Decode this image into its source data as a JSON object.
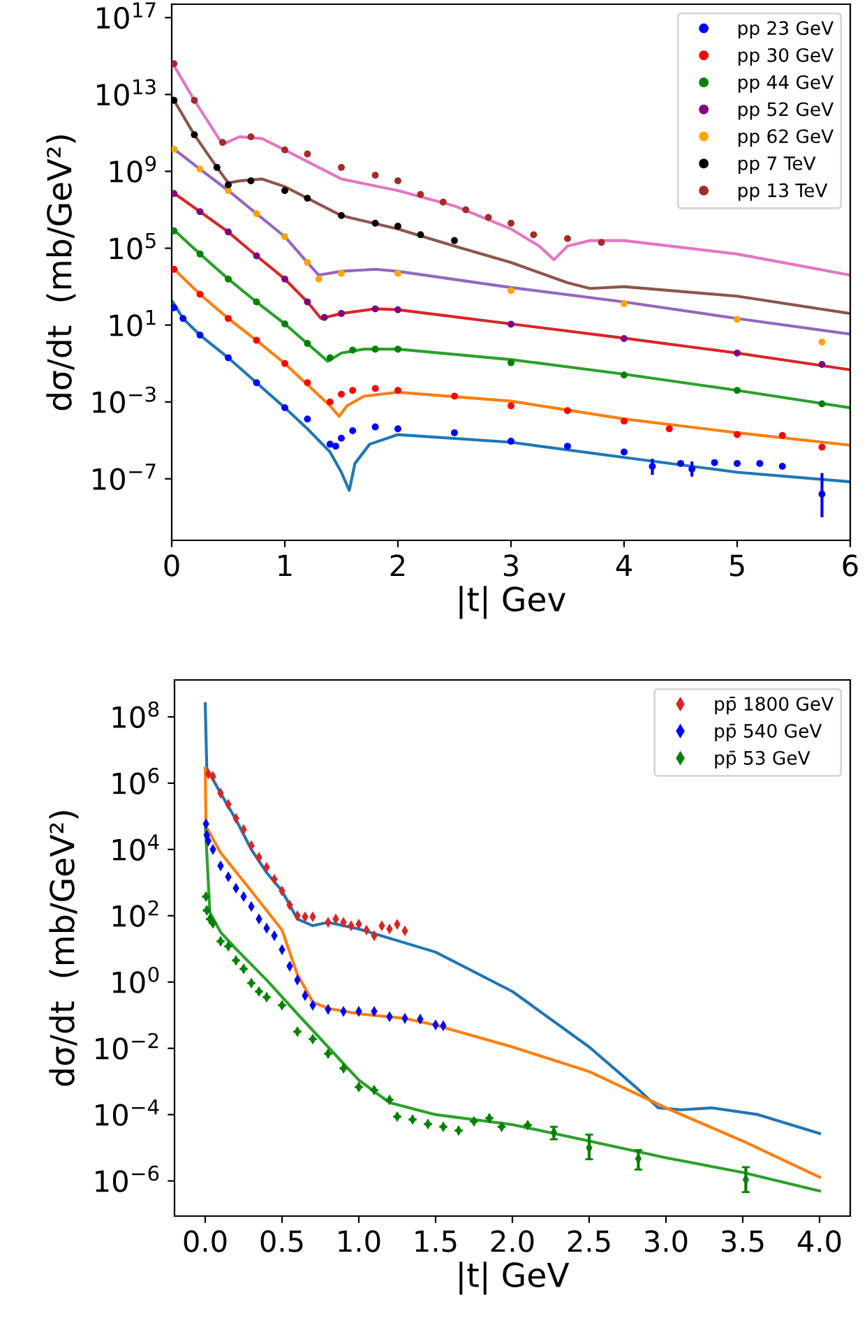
{
  "chart_data": [
    {
      "type": "scatter",
      "xlabel": "|t| Gev",
      "ylabel": "dσ/dt  (mb/GeV²)",
      "log": "y",
      "grid": false,
      "legend": "top right",
      "marker": "circle",
      "xlim": [
        0,
        6
      ],
      "xticks": [
        0,
        1,
        2,
        3,
        4,
        5,
        6
      ],
      "ylim": [
        6.3e-11,
        5e+17
      ],
      "yticks": [
        {
          "value": 1e+17,
          "label": "10$^{17}$"
        },
        {
          "value": 10000000000000.0,
          "label": "10$^{13}$"
        },
        {
          "value": 1000000000.0,
          "label": "10$^{9}$"
        },
        {
          "value": 100000.0,
          "label": "10$^{5}$"
        },
        {
          "value": 10,
          "label": "10$^{1}$"
        },
        {
          "value": 0.001,
          "label": "10$^{−3}$"
        },
        {
          "value": 1e-07,
          "label": "10$^{−7}$"
        }
      ],
      "series": [
        {
          "type": "scatter",
          "name": "pp 23 GeV",
          "color": "#0000ff",
          "x": [
            0.02,
            0.1,
            0.25,
            0.5,
            0.75,
            1.0,
            1.2,
            1.4,
            1.45,
            1.5,
            1.6,
            1.8,
            2.0,
            2.5,
            3.0,
            3.5,
            4.0,
            4.25,
            4.5,
            4.6,
            4.8,
            5.0,
            5.2,
            5.4,
            5.75
          ],
          "values": [
            80,
            22,
            3,
            0.2,
            0.01,
            0.0005,
            0.00013,
            6.3e-06,
            5e-06,
            1.3e-05,
            3.2e-05,
            5e-05,
            4e-05,
            2.5e-05,
            9e-06,
            5e-06,
            2.5e-06,
            4.5e-07,
            6.3e-07,
            3.2e-07,
            7e-07,
            6.3e-07,
            6.3e-07,
            4.5e-07,
            1.6e-08
          ],
          "errors": [
            null,
            null,
            null,
            null,
            null,
            null,
            null,
            null,
            null,
            null,
            null,
            null,
            null,
            null,
            null,
            null,
            null,
            [
              1.6e-07,
              1.1e-06
            ],
            null,
            [
              1.3e-07,
              8e-07
            ],
            null,
            null,
            null,
            null,
            [
              1e-09,
              2e-07
            ]
          ]
        },
        {
          "type": "scatter",
          "name": "pp 30 GeV",
          "color": "#ff0000",
          "x": [
            0.02,
            0.25,
            0.5,
            0.75,
            1.0,
            1.2,
            1.4,
            1.5,
            1.6,
            1.8,
            2.0,
            2.5,
            3.0,
            3.5,
            4.0,
            4.4,
            5.0,
            5.4,
            5.75
          ],
          "values": [
            8000,
            400,
            22,
            1.6,
            0.1,
            0.01,
            0.001,
            0.0025,
            0.004,
            0.005,
            0.004,
            0.002,
            0.00063,
            0.00035,
            0.0001,
            4e-05,
            2e-05,
            1.8e-05,
            4.5e-06
          ]
        },
        {
          "type": "scatter",
          "name": "pp 44 GeV",
          "color": "#008000",
          "x": [
            0.02,
            0.25,
            0.5,
            0.75,
            1.0,
            1.2,
            1.4,
            1.6,
            1.8,
            2.0,
            3.0,
            4.0,
            5.0,
            5.75
          ],
          "values": [
            800000.0,
            50000.0,
            2500,
            160,
            11.5,
            1.1,
            0.2,
            0.5,
            0.56,
            0.56,
            0.11,
            0.025,
            0.004,
            0.0008
          ]
        },
        {
          "type": "scatter",
          "name": "pp 52 GeV",
          "color": "#800080",
          "x": [
            0.02,
            0.25,
            0.5,
            0.75,
            1.0,
            1.2,
            1.35,
            1.5,
            1.8,
            2.0,
            3.0,
            4.0,
            5.0,
            5.75
          ],
          "values": [
            70000000.0,
            8000000.0,
            700000.0,
            40000.0,
            2500,
            160,
            25,
            40,
            70,
            63,
            11,
            2,
            0.35,
            0.09
          ]
        },
        {
          "type": "scatter",
          "name": "pp 62 GeV",
          "color": "#ffa500",
          "x": [
            0.02,
            0.25,
            0.5,
            0.75,
            1.0,
            1.2,
            1.3,
            1.5,
            2.0,
            3.0,
            4.0,
            5.0,
            5.75
          ],
          "values": [
            14000000000.0,
            1300000000.0,
            100000000.0,
            6300000.0,
            400000.0,
            18000.0,
            2500,
            5000,
            5000,
            630,
            130,
            20,
            1.3
          ]
        },
        {
          "type": "scatter",
          "name": "pp 7 TeV",
          "color": "#000000",
          "x": [
            0.02,
            0.2,
            0.4,
            0.5,
            0.7,
            1.0,
            1.2,
            1.5,
            1.8,
            2.0,
            2.2,
            2.5
          ],
          "values": [
            5000000000000.0,
            80000000000.0,
            1600000000.0,
            200000000.0,
            320000000.0,
            100000000.0,
            40000000.0,
            5000000.0,
            2000000.0,
            1400000.0,
            500000.0,
            250000.0
          ]
        },
        {
          "type": "scatter",
          "name": "pp 13 TeV",
          "color": "#a52a2a",
          "x": [
            0.02,
            0.2,
            0.45,
            0.7,
            1.0,
            1.2,
            1.5,
            1.8,
            2.0,
            2.2,
            2.4,
            2.6,
            2.8,
            3.0,
            3.2,
            3.5,
            3.8
          ],
          "values": [
            400000000000000.0,
            5000000000000.0,
            32000000000.0,
            63000000000.0,
            13000000000.0,
            8000000000.0,
            1600000000.0,
            630000000.0,
            320000000.0,
            63000000.0,
            25000000.0,
            10000000.0,
            4000000.0,
            2000000.0,
            500000.0,
            320000.0,
            200000.0
          ]
        },
        {
          "type": "line",
          "marker": "none",
          "color": "#1f77b4",
          "x": [
            0.01,
            0.1,
            0.25,
            0.5,
            0.75,
            1.0,
            1.2,
            1.4,
            1.5,
            1.57,
            1.62,
            1.75,
            2.0,
            3.0,
            4.0,
            5.0,
            6.0
          ],
          "values": [
            160,
            22,
            3,
            0.2,
            0.01,
            0.0005,
            4e-05,
            2.5e-06,
            2.2e-07,
            2.5e-08,
            6.3e-07,
            6.3e-06,
            2e-05,
            8e-06,
            1.3e-06,
            2.2e-07,
            7e-08
          ]
        },
        {
          "type": "line",
          "marker": "none",
          "color": "#ff7f0e",
          "x": [
            0.01,
            0.25,
            0.5,
            0.75,
            1.0,
            1.2,
            1.4,
            1.48,
            1.55,
            1.7,
            2.0,
            3.0,
            4.0,
            5.0,
            6.0
          ],
          "values": [
            9300,
            400,
            22,
            1.6,
            0.1,
            0.008,
            0.00063,
            0.00018,
            0.00063,
            0.002,
            0.0032,
            0.0011,
            0.00013,
            2.5e-05,
            5.6e-06
          ]
        },
        {
          "type": "line",
          "marker": "none",
          "color": "#2ca02c",
          "x": [
            0.01,
            0.25,
            0.5,
            0.75,
            1.0,
            1.2,
            1.38,
            1.5,
            1.7,
            2.0,
            3.0,
            4.0,
            5.0,
            6.0
          ],
          "values": [
            1000000.0,
            50000.0,
            2500,
            160,
            11.5,
            1.1,
            0.13,
            0.35,
            0.56,
            0.56,
            0.16,
            0.028,
            0.004,
            0.0005
          ]
        },
        {
          "type": "line",
          "marker": "none",
          "color": "#d62728",
          "x": [
            0.01,
            0.25,
            0.5,
            0.75,
            1.0,
            1.2,
            1.32,
            1.5,
            1.8,
            2.0,
            3.0,
            4.0,
            5.0,
            6.0
          ],
          "values": [
            80000000.0,
            8000000.0,
            700000.0,
            40000.0,
            2500,
            160,
            22,
            40,
            70,
            63,
            11.5,
            2.1,
            0.35,
            0.047
          ]
        },
        {
          "type": "line",
          "marker": "none",
          "color": "#9467bd",
          "x": [
            0.01,
            0.25,
            0.5,
            0.75,
            1.0,
            1.2,
            1.3,
            1.5,
            1.8,
            2.0,
            3.0,
            4.0,
            5.0,
            6.0
          ],
          "values": [
            16000000000.0,
            1300000000.0,
            100000000.0,
            6300000.0,
            400000.0,
            18000.0,
            4000,
            6300,
            8000,
            6300,
            900,
            160,
            22,
            3.4
          ]
        },
        {
          "type": "line",
          "marker": "none",
          "color": "#8c564b",
          "x": [
            0.01,
            0.2,
            0.4,
            0.5,
            0.6,
            0.8,
            1.0,
            1.5,
            2.0,
            2.5,
            3.0,
            3.5,
            3.7,
            4.0,
            5.0,
            6.0
          ],
          "values": [
            6300000000000.0,
            80000000000.0,
            1600000000.0,
            250000000.0,
            320000000.0,
            400000000.0,
            160000000.0,
            5000000.0,
            1000000.0,
            130000.0,
            18000.0,
            1600,
            800,
            1000,
            320,
            40
          ]
        },
        {
          "type": "line",
          "marker": "none",
          "color": "#e377c2",
          "x": [
            0.01,
            0.2,
            0.45,
            0.6,
            0.8,
            1.0,
            1.5,
            2.0,
            2.5,
            3.0,
            3.25,
            3.38,
            3.5,
            3.7,
            4.0,
            5.0,
            6.0
          ],
          "values": [
            400000000000000.0,
            5000000000000.0,
            25000000000.0,
            63000000000.0,
            50000000000.0,
            13000000000.0,
            400000000.0,
            100000000.0,
            16000000.0,
            1000000.0,
            130000.0,
            25000.0,
            130000.0,
            250000.0,
            250000.0,
            50000.0,
            4000
          ]
        }
      ]
    },
    {
      "type": "scatter",
      "xlabel": "|t| GeV",
      "ylabel": "dσ/dt  (mb/GeV²)",
      "log": "y",
      "grid": false,
      "legend": "top right",
      "marker": "diamond",
      "xlim": [
        -0.2,
        4.2
      ],
      "xticks": [
        {
          "value": 0,
          "label": "0.0"
        },
        0.5,
        {
          "value": 1,
          "label": "1.0"
        },
        1.5,
        {
          "value": 2,
          "label": "2.0"
        },
        2.5,
        {
          "value": 3,
          "label": "3.0"
        },
        3.5,
        {
          "value": 4,
          "label": "4.0"
        }
      ],
      "ylim": [
        8.7e-08,
        1300000000.0
      ],
      "yticks": [
        {
          "value": 100000000.0,
          "label": "10$^{8}$"
        },
        {
          "value": 1000000.0,
          "label": "10$^{6}$"
        },
        {
          "value": 10000.0,
          "label": "10$^{4}$"
        },
        {
          "value": 100,
          "label": "10$^{2}$"
        },
        {
          "value": 1,
          "label": "10$^{0}$"
        },
        {
          "value": 0.01,
          "label": "10$^{−2}$"
        },
        {
          "value": 0.0001,
          "label": "10$^{−4}$"
        },
        {
          "value": 1e-06,
          "label": "10$^{−6}$"
        }
      ],
      "series": [
        {
          "type": "scatter",
          "name": "pp̄ 1800 GeV",
          "color": "#d62728",
          "x": [
            0.02,
            0.05,
            0.1,
            0.15,
            0.2,
            0.25,
            0.3,
            0.35,
            0.4,
            0.45,
            0.5,
            0.55,
            0.6,
            0.65,
            0.7,
            0.8,
            0.85,
            0.9,
            0.95,
            1.0,
            1.05,
            1.1,
            1.15,
            1.2,
            1.25,
            1.3
          ],
          "values": [
            1900000.0,
            1600000.0,
            500000.0,
            230000.0,
            87000.0,
            40000.0,
            13000.0,
            5800,
            2900,
            1260,
            560,
            210,
            100,
            93,
            93,
            63,
            80,
            63,
            50,
            56,
            37,
            25,
            50,
            40,
            55,
            35
          ]
        },
        {
          "type": "scatter",
          "name": "pp̄ 540 GeV",
          "color": "#0000ff",
          "x": [
            0.005,
            0.01,
            0.02,
            0.05,
            0.1,
            0.15,
            0.2,
            0.25,
            0.3,
            0.35,
            0.4,
            0.45,
            0.5,
            0.55,
            0.6,
            0.65,
            0.7,
            0.8,
            0.9,
            1.0,
            1.1,
            1.2,
            1.3,
            1.4,
            1.5,
            1.55
          ],
          "values": [
            59000.0,
            27000.0,
            18000.0,
            10000.0,
            3200,
            1500,
            680,
            380,
            190,
            80,
            42,
            25,
            9.5,
            3,
            1.15,
            0.39,
            0.2,
            0.15,
            0.13,
            0.13,
            0.13,
            0.09,
            0.08,
            0.076,
            0.051,
            0.048
          ]
        },
        {
          "type": "scatter",
          "name": "pp̄ 53 GeV",
          "color": "#008000",
          "x": [
            0.005,
            0.01,
            0.03,
            0.05,
            0.1,
            0.15,
            0.2,
            0.25,
            0.3,
            0.35,
            0.4,
            0.5,
            0.6,
            0.7,
            0.8,
            0.9,
            1.0,
            1.1,
            1.2,
            1.25,
            1.35,
            1.45,
            1.55,
            1.65,
            1.75,
            1.85,
            1.93,
            2.1,
            2.27,
            2.5,
            2.82,
            3.52
          ],
          "values": [
            380,
            145,
            80,
            59,
            17,
            12,
            4.5,
            2.5,
            0.93,
            0.52,
            0.35,
            0.2,
            0.032,
            0.019,
            0.0069,
            0.0025,
            0.00068,
            0.00055,
            0.00028,
            8.7e-05,
            7.1e-05,
            5.2e-05,
            4.3e-05,
            3.3e-05,
            6.3e-05,
            7.8e-05,
            4.3e-05,
            4.8e-05,
            2.9e-05,
            1e-05,
            4.7e-06,
            1.1e-06
          ],
          "errors": [
            null,
            null,
            null,
            null,
            null,
            null,
            null,
            null,
            null,
            null,
            null,
            null,
            null,
            null,
            null,
            null,
            null,
            null,
            null,
            null,
            null,
            null,
            null,
            null,
            null,
            null,
            null,
            null,
            [
              1.8e-05,
              4.3e-05
            ],
            [
              4.5e-06,
              2.5e-05
            ],
            [
              2.2e-06,
              8.5e-06
            ],
            [
              4.6e-07,
              2.6e-06
            ]
          ]
        },
        {
          "type": "line",
          "marker": "none",
          "color": "#1f77b4",
          "x": [
            0.0,
            0.01,
            0.1,
            0.2,
            0.3,
            0.4,
            0.5,
            0.6,
            0.7,
            0.8,
            1.0,
            1.5,
            2.0,
            2.5,
            2.8,
            2.95,
            3.1,
            3.3,
            3.6,
            4.0
          ],
          "values": [
            250000000.0,
            2800000.0,
            500000.0,
            80000.0,
            10000.0,
            2000,
            560,
            80,
            50,
            63,
            40,
            8,
            0.52,
            0.011,
            0.0007,
            0.00016,
            0.00014,
            0.00016,
            0.0001,
            2.7e-05
          ]
        },
        {
          "type": "line",
          "marker": "none",
          "color": "#ff7f0e",
          "x": [
            0.0,
            0.005,
            0.1,
            0.3,
            0.5,
            0.6,
            0.7,
            0.8,
            1.0,
            1.3,
            1.5,
            2.0,
            2.5,
            3.0,
            3.5,
            4.0
          ],
          "values": [
            2800000.0,
            50000.0,
            8000.0,
            560,
            37,
            1.7,
            0.25,
            0.16,
            0.11,
            0.08,
            0.05,
            0.011,
            0.002,
            0.00016,
            1.6e-05,
            1.3e-06
          ]
        },
        {
          "type": "line",
          "marker": "none",
          "color": "#2ca02c",
          "x": [
            0.0,
            0.03,
            0.1,
            0.2,
            0.4,
            0.6,
            0.8,
            1.0,
            1.2,
            1.5,
            2.0,
            2.5,
            3.0,
            3.5,
            4.0
          ],
          "values": [
            63000.0,
            126,
            32,
            10,
            1.15,
            0.11,
            0.011,
            0.0011,
            0.00023,
            0.0001,
            5e-05,
            1.6e-05,
            5e-06,
            1.8e-06,
            5e-07
          ]
        }
      ]
    }
  ]
}
